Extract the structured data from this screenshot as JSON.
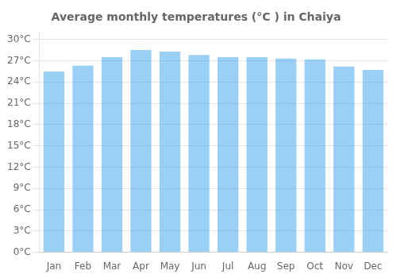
{
  "chart_data": {
    "type": "bar",
    "title": "Average monthly temperatures (°C ) in Chaiya",
    "categories": [
      "Jan",
      "Feb",
      "Mar",
      "Apr",
      "May",
      "Jun",
      "Jul",
      "Aug",
      "Sep",
      "Oct",
      "Nov",
      "Dec"
    ],
    "values": [
      25.5,
      26.3,
      27.5,
      28.5,
      28.3,
      27.8,
      27.5,
      27.5,
      27.3,
      27.2,
      26.2,
      25.7
    ],
    "ylim": [
      0,
      31
    ],
    "yticks": [
      {
        "value": 0,
        "label": "0°C"
      },
      {
        "value": 3,
        "label": "3°C"
      },
      {
        "value": 6,
        "label": "6°C"
      },
      {
        "value": 9,
        "label": "9°C"
      },
      {
        "value": 12,
        "label": "12°C"
      },
      {
        "value": 15,
        "label": "15°C"
      },
      {
        "value": 18,
        "label": "18°C"
      },
      {
        "value": 21,
        "label": "21°C"
      },
      {
        "value": 24,
        "label": "24°C"
      },
      {
        "value": 27,
        "label": "27°C"
      },
      {
        "value": 30,
        "label": "30°C"
      }
    ],
    "grid": true
  }
}
